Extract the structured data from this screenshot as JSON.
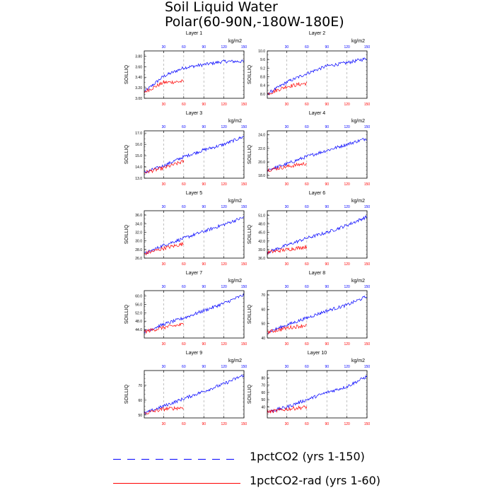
{
  "title": {
    "line1": "Soil Liquid Water",
    "line2": "Polar(60-90N,-180W-180E)"
  },
  "colors": {
    "series_a": "#0000ff",
    "series_b": "#ff0000",
    "grid": "#999999",
    "axis": "#000000"
  },
  "legend": {
    "items": [
      {
        "label": "1pctCO2 (yrs 1-150)",
        "color": "#0000ff",
        "style": "dashed"
      },
      {
        "label": "1pctCO2-rad (yrs 1-60)",
        "color": "#ff0000",
        "style": "solid"
      }
    ]
  },
  "chart_data": {
    "type": "line",
    "ylabel": "SOILLIQ",
    "top_axis_units": "kg/m2",
    "xlim": [
      1,
      150
    ],
    "x_ticks": [
      30,
      60,
      90,
      120,
      150
    ],
    "grid": "vertical dashed at x ticks",
    "panels": [
      {
        "title": "Layer 1",
        "ylim": [
          3.0,
          3.9
        ],
        "y_ticks": [
          "3.00",
          "3.20",
          "3.40",
          "3.60",
          "3.80"
        ],
        "series": [
          {
            "name": "1pctCO2 (yrs 1-150)",
            "x_range": [
              1,
              150
            ],
            "points": [
              [
                1,
                3.12
              ],
              [
                30,
                3.42
              ],
              [
                60,
                3.58
              ],
              [
                90,
                3.64
              ],
              [
                120,
                3.7
              ],
              [
                150,
                3.7
              ]
            ]
          },
          {
            "name": "1pctCO2-rad (yrs 1-60)",
            "x_range": [
              1,
              60
            ],
            "points": [
              [
                1,
                3.12
              ],
              [
                30,
                3.3
              ],
              [
                60,
                3.32
              ]
            ]
          }
        ]
      },
      {
        "title": "Layer 2",
        "ylim": [
          7.8,
          10.0
        ],
        "y_ticks": [
          "8.0",
          "8.4",
          "8.8",
          "9.2",
          "9.6",
          "10.0"
        ],
        "series": [
          {
            "name": "1pctCO2 (yrs 1-150)",
            "x_range": [
              1,
              150
            ],
            "points": [
              [
                1,
                8.0
              ],
              [
                30,
                8.55
              ],
              [
                60,
                8.95
              ],
              [
                90,
                9.3
              ],
              [
                120,
                9.45
              ],
              [
                150,
                9.65
              ]
            ]
          },
          {
            "name": "1pctCO2-rad (yrs 1-60)",
            "x_range": [
              1,
              60
            ],
            "points": [
              [
                1,
                8.0
              ],
              [
                30,
                8.35
              ],
              [
                60,
                8.5
              ]
            ]
          }
        ]
      },
      {
        "title": "Layer 3",
        "ylim": [
          13.0,
          17.2
        ],
        "y_ticks": [
          "13.0",
          "14.0",
          "15.0",
          "16.0",
          "17.0"
        ],
        "series": [
          {
            "name": "1pctCO2 (yrs 1-150)",
            "x_range": [
              1,
              150
            ],
            "points": [
              [
                1,
                13.5
              ],
              [
                30,
                14.1
              ],
              [
                60,
                14.9
              ],
              [
                90,
                15.5
              ],
              [
                120,
                16.0
              ],
              [
                150,
                16.7
              ]
            ]
          },
          {
            "name": "1pctCO2-rad (yrs 1-60)",
            "x_range": [
              1,
              60
            ],
            "points": [
              [
                1,
                13.5
              ],
              [
                30,
                13.9
              ],
              [
                60,
                14.5
              ]
            ]
          }
        ]
      },
      {
        "title": "Layer 4",
        "ylim": [
          17.6,
          24.6
        ],
        "y_ticks": [
          "18.0",
          "20.0",
          "22.0",
          "24.0"
        ],
        "series": [
          {
            "name": "1pctCO2 (yrs 1-150)",
            "x_range": [
              1,
              150
            ],
            "points": [
              [
                1,
                18.8
              ],
              [
                30,
                19.7
              ],
              [
                60,
                20.8
              ],
              [
                90,
                21.7
              ],
              [
                120,
                22.6
              ],
              [
                150,
                23.5
              ]
            ]
          },
          {
            "name": "1pctCO2-rad (yrs 1-60)",
            "x_range": [
              1,
              60
            ],
            "points": [
              [
                1,
                18.8
              ],
              [
                30,
                19.3
              ],
              [
                60,
                19.8
              ]
            ]
          }
        ]
      },
      {
        "title": "Layer 5",
        "ylim": [
          26.0,
          37.0
        ],
        "y_ticks": [
          "26.0",
          "28.0",
          "30.0",
          "32.0",
          "34.0",
          "36.0"
        ],
        "series": [
          {
            "name": "1pctCO2 (yrs 1-150)",
            "x_range": [
              1,
              150
            ],
            "points": [
              [
                1,
                27.0
              ],
              [
                30,
                29.0
              ],
              [
                60,
                30.6
              ],
              [
                90,
                32.2
              ],
              [
                120,
                33.8
              ],
              [
                150,
                35.5
              ]
            ]
          },
          {
            "name": "1pctCO2-rad (yrs 1-60)",
            "x_range": [
              1,
              60
            ],
            "points": [
              [
                1,
                27.0
              ],
              [
                30,
                28.3
              ],
              [
                60,
                29.3
              ]
            ]
          }
        ]
      },
      {
        "title": "Layer 6",
        "ylim": [
          36.0,
          52.6
        ],
        "y_ticks": [
          "36.0",
          "39.0",
          "42.0",
          "45.0",
          "48.0",
          "51.0"
        ],
        "series": [
          {
            "name": "1pctCO2 (yrs 1-150)",
            "x_range": [
              1,
              150
            ],
            "points": [
              [
                1,
                38.0
              ],
              [
                30,
                40.5
              ],
              [
                60,
                43.0
              ],
              [
                90,
                45.0
              ],
              [
                120,
                47.5
              ],
              [
                150,
                50.5
              ]
            ]
          },
          {
            "name": "1pctCO2-rad (yrs 1-60)",
            "x_range": [
              1,
              60
            ],
            "points": [
              [
                1,
                38.0
              ],
              [
                30,
                39.0
              ],
              [
                60,
                40.0
              ]
            ]
          }
        ]
      },
      {
        "title": "Layer 7",
        "ylim": [
          40.0,
          62.5
        ],
        "y_ticks": [
          "44.0",
          "48.0",
          "52.0",
          "56.0",
          "60.0"
        ],
        "series": [
          {
            "name": "1pctCO2 (yrs 1-150)",
            "x_range": [
              1,
              150
            ],
            "points": [
              [
                1,
                43.0
              ],
              [
                30,
                46.5
              ],
              [
                60,
                49.5
              ],
              [
                90,
                53.0
              ],
              [
                120,
                56.5
              ],
              [
                150,
                60.5
              ]
            ]
          },
          {
            "name": "1pctCO2-rad (yrs 1-60)",
            "x_range": [
              1,
              60
            ],
            "points": [
              [
                1,
                43.0
              ],
              [
                30,
                45.0
              ],
              [
                60,
                46.5
              ]
            ]
          }
        ]
      },
      {
        "title": "Layer 8",
        "ylim": [
          40,
          73
        ],
        "y_ticks": [
          "40",
          "50",
          "60",
          "70"
        ],
        "series": [
          {
            "name": "1pctCO2 (yrs 1-150)",
            "x_range": [
              1,
              150
            ],
            "points": [
              [
                1,
                44
              ],
              [
                30,
                49
              ],
              [
                60,
                54
              ],
              [
                90,
                59
              ],
              [
                120,
                63
              ],
              [
                150,
                69
              ]
            ]
          },
          {
            "name": "1pctCO2-rad (yrs 1-60)",
            "x_range": [
              1,
              60
            ],
            "points": [
              [
                1,
                44
              ],
              [
                30,
                47
              ],
              [
                60,
                49
              ]
            ]
          }
        ]
      },
      {
        "title": "Layer 9",
        "ylim": [
          48,
          80
        ],
        "y_ticks": [
          "50",
          "60",
          "70"
        ],
        "series": [
          {
            "name": "1pctCO2 (yrs 1-150)",
            "x_range": [
              1,
              150
            ],
            "points": [
              [
                1,
                51
              ],
              [
                30,
                56
              ],
              [
                60,
                61
              ],
              [
                90,
                66
              ],
              [
                120,
                71
              ],
              [
                150,
                77
              ]
            ]
          },
          {
            "name": "1pctCO2-rad (yrs 1-60)",
            "x_range": [
              1,
              60
            ],
            "points": [
              [
                1,
                51
              ],
              [
                30,
                54
              ],
              [
                60,
                55
              ]
            ]
          }
        ]
      },
      {
        "title": "Layer 10",
        "ylim": [
          25,
          90
        ],
        "y_ticks": [
          "40",
          "50",
          "60",
          "70",
          "80"
        ],
        "series": [
          {
            "name": "1pctCO2 (yrs 1-150)",
            "x_range": [
              1,
              150
            ],
            "points": [
              [
                1,
                33
              ],
              [
                30,
                40
              ],
              [
                60,
                50
              ],
              [
                90,
                60
              ],
              [
                120,
                68
              ],
              [
                150,
                82
              ]
            ]
          },
          {
            "name": "1pctCO2-rad (yrs 1-60)",
            "x_range": [
              1,
              60
            ],
            "points": [
              [
                1,
                33
              ],
              [
                30,
                37
              ],
              [
                60,
                40
              ]
            ]
          }
        ]
      }
    ]
  }
}
